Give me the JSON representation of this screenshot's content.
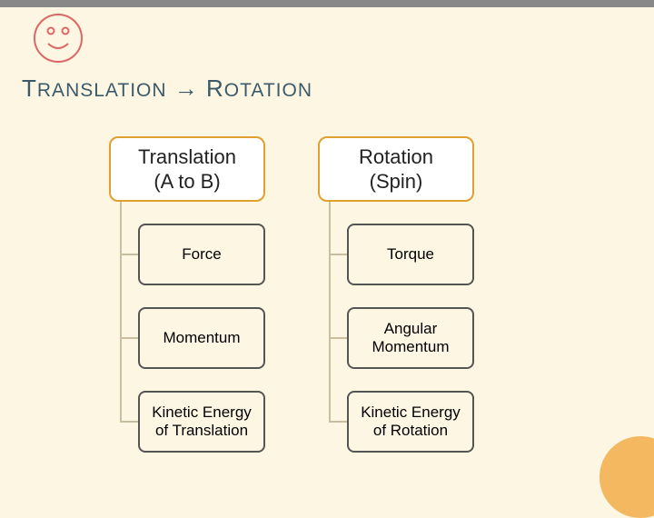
{
  "title_html": "T<span style='font-size:21px'>RANSLATION</span> &rarr; R<span style='font-size:21px'>OTATION</span>",
  "smiley": {
    "stroke": "#d66",
    "stroke_width": 2,
    "r_face": 26,
    "eye_r": 3.5
  },
  "columns": [
    {
      "header_line1": "Translation",
      "header_line2": "(A to B)",
      "nodes": [
        "Force",
        "Momentum",
        "Kinetic\nEnergy of\nTranslation"
      ]
    },
    {
      "header_line1": "Rotation",
      "header_line2": "(Spin)",
      "nodes": [
        "Torque",
        "Angular\nMomentum",
        "Kinetic\nEnergy of\nRotation"
      ]
    }
  ],
  "colors": {
    "background": "#fdf6e3",
    "header_border": "#e0a030",
    "node_border": "#555",
    "connector": "#c9bfa0",
    "title_color": "#3a5a6a",
    "corner_circle": "#f4b860",
    "top_accent": "#888"
  }
}
